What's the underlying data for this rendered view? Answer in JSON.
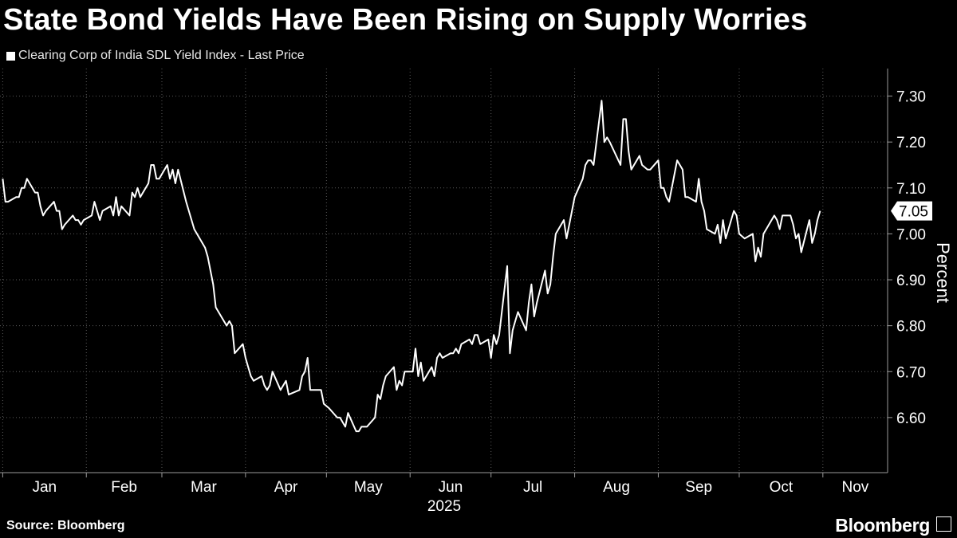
{
  "header": {
    "title": "State Bond Yields Have Been Rising on Supply Worries",
    "legend_label": "Clearing Corp of India SDL Yield Index - Last Price"
  },
  "footer": {
    "source": "Source: Bloomberg",
    "brand": "Bloomberg"
  },
  "chart_data": {
    "type": "line",
    "title": "State Bond Yields Have Been Rising on Supply Worries",
    "ylabel": "Percent",
    "xlabel": "2025",
    "ylim": [
      6.48,
      7.36
    ],
    "yticks": [
      "6.60",
      "6.70",
      "6.80",
      "6.90",
      "7.00",
      "7.10",
      "7.20",
      "7.30"
    ],
    "xticks": [
      "Jan",
      "Feb",
      "Mar",
      "Apr",
      "May",
      "Jun",
      "Jul",
      "Aug",
      "Sep",
      "Oct",
      "Nov"
    ],
    "year_label": "2025",
    "grid": true,
    "legend": "top-left",
    "last_value_label": "7.05",
    "series": [
      {
        "name": "Clearing Corp of India SDL Yield Index - Last Price",
        "color": "#ffffff",
        "points": [
          [
            "2025-01-01",
            7.12
          ],
          [
            "2025-01-02",
            7.07
          ],
          [
            "2025-01-03",
            7.07
          ],
          [
            "2025-01-06",
            7.08
          ],
          [
            "2025-01-07",
            7.08
          ],
          [
            "2025-01-08",
            7.1
          ],
          [
            "2025-01-09",
            7.1
          ],
          [
            "2025-01-10",
            7.12
          ],
          [
            "2025-01-13",
            7.09
          ],
          [
            "2025-01-14",
            7.09
          ],
          [
            "2025-01-15",
            7.06
          ],
          [
            "2025-01-16",
            7.04
          ],
          [
            "2025-01-17",
            7.05
          ],
          [
            "2025-01-20",
            7.07
          ],
          [
            "2025-01-21",
            7.05
          ],
          [
            "2025-01-22",
            7.05
          ],
          [
            "2025-01-23",
            7.01
          ],
          [
            "2025-01-24",
            7.02
          ],
          [
            "2025-01-27",
            7.04
          ],
          [
            "2025-01-28",
            7.03
          ],
          [
            "2025-01-29",
            7.03
          ],
          [
            "2025-01-30",
            7.02
          ],
          [
            "2025-01-31",
            7.03
          ],
          [
            "2025-02-03",
            7.04
          ],
          [
            "2025-02-04",
            7.07
          ],
          [
            "2025-02-05",
            7.05
          ],
          [
            "2025-02-06",
            7.03
          ],
          [
            "2025-02-07",
            7.05
          ],
          [
            "2025-02-10",
            7.06
          ],
          [
            "2025-02-11",
            7.04
          ],
          [
            "2025-02-12",
            7.08
          ],
          [
            "2025-02-13",
            7.04
          ],
          [
            "2025-02-14",
            7.06
          ],
          [
            "2025-02-17",
            7.04
          ],
          [
            "2025-02-18",
            7.09
          ],
          [
            "2025-02-19",
            7.08
          ],
          [
            "2025-02-20",
            7.1
          ],
          [
            "2025-02-21",
            7.08
          ],
          [
            "2025-02-24",
            7.11
          ],
          [
            "2025-02-25",
            7.15
          ],
          [
            "2025-02-26",
            7.15
          ],
          [
            "2025-02-27",
            7.12
          ],
          [
            "2025-02-28",
            7.12
          ],
          [
            "2025-03-03",
            7.15
          ],
          [
            "2025-03-04",
            7.12
          ],
          [
            "2025-03-05",
            7.14
          ],
          [
            "2025-03-06",
            7.11
          ],
          [
            "2025-03-07",
            7.14
          ],
          [
            "2025-03-10",
            7.07
          ],
          [
            "2025-03-11",
            7.05
          ],
          [
            "2025-03-12",
            7.03
          ],
          [
            "2025-03-13",
            7.01
          ],
          [
            "2025-03-14",
            7.0
          ],
          [
            "2025-03-17",
            6.97
          ],
          [
            "2025-03-18",
            6.95
          ],
          [
            "2025-03-19",
            6.92
          ],
          [
            "2025-03-20",
            6.89
          ],
          [
            "2025-03-21",
            6.84
          ],
          [
            "2025-03-24",
            6.81
          ],
          [
            "2025-03-25",
            6.8
          ],
          [
            "2025-03-26",
            6.81
          ],
          [
            "2025-03-27",
            6.8
          ],
          [
            "2025-03-28",
            6.74
          ],
          [
            "2025-03-31",
            6.76
          ],
          [
            "2025-04-01",
            6.73
          ],
          [
            "2025-04-02",
            6.71
          ],
          [
            "2025-04-03",
            6.69
          ],
          [
            "2025-04-04",
            6.68
          ],
          [
            "2025-04-07",
            6.69
          ],
          [
            "2025-04-08",
            6.67
          ],
          [
            "2025-04-09",
            6.66
          ],
          [
            "2025-04-10",
            6.67
          ],
          [
            "2025-04-11",
            6.7
          ],
          [
            "2025-04-14",
            6.66
          ],
          [
            "2025-04-15",
            6.67
          ],
          [
            "2025-04-16",
            6.68
          ],
          [
            "2025-04-17",
            6.65
          ],
          [
            "2025-04-21",
            6.66
          ],
          [
            "2025-04-22",
            6.69
          ],
          [
            "2025-04-23",
            6.7
          ],
          [
            "2025-04-24",
            6.73
          ],
          [
            "2025-04-25",
            6.66
          ],
          [
            "2025-04-28",
            6.66
          ],
          [
            "2025-04-29",
            6.66
          ],
          [
            "2025-04-30",
            6.63
          ],
          [
            "2025-05-02",
            6.62
          ],
          [
            "2025-05-05",
            6.6
          ],
          [
            "2025-05-06",
            6.6
          ],
          [
            "2025-05-07",
            6.59
          ],
          [
            "2025-05-08",
            6.58
          ],
          [
            "2025-05-09",
            6.61
          ],
          [
            "2025-05-12",
            6.57
          ],
          [
            "2025-05-13",
            6.57
          ],
          [
            "2025-05-14",
            6.58
          ],
          [
            "2025-05-15",
            6.58
          ],
          [
            "2025-05-16",
            6.58
          ],
          [
            "2025-05-19",
            6.6
          ],
          [
            "2025-05-20",
            6.65
          ],
          [
            "2025-05-21",
            6.64
          ],
          [
            "2025-05-22",
            6.67
          ],
          [
            "2025-05-23",
            6.69
          ],
          [
            "2025-05-26",
            6.71
          ],
          [
            "2025-05-27",
            6.66
          ],
          [
            "2025-05-28",
            6.68
          ],
          [
            "2025-05-29",
            6.67
          ],
          [
            "2025-05-30",
            6.7
          ],
          [
            "2025-06-02",
            6.7
          ],
          [
            "2025-06-03",
            6.75
          ],
          [
            "2025-06-04",
            6.69
          ],
          [
            "2025-06-05",
            6.72
          ],
          [
            "2025-06-06",
            6.68
          ],
          [
            "2025-06-09",
            6.71
          ],
          [
            "2025-06-10",
            6.69
          ],
          [
            "2025-06-11",
            6.73
          ],
          [
            "2025-06-12",
            6.74
          ],
          [
            "2025-06-13",
            6.73
          ],
          [
            "2025-06-16",
            6.74
          ],
          [
            "2025-06-17",
            6.74
          ],
          [
            "2025-06-18",
            6.75
          ],
          [
            "2025-06-19",
            6.74
          ],
          [
            "2025-06-20",
            6.76
          ],
          [
            "2025-06-23",
            6.77
          ],
          [
            "2025-06-24",
            6.76
          ],
          [
            "2025-06-25",
            6.78
          ],
          [
            "2025-06-26",
            6.78
          ],
          [
            "2025-06-27",
            6.76
          ],
          [
            "2025-06-30",
            6.77
          ],
          [
            "2025-07-01",
            6.73
          ],
          [
            "2025-07-02",
            6.78
          ],
          [
            "2025-07-03",
            6.76
          ],
          [
            "2025-07-04",
            6.78
          ],
          [
            "2025-07-07",
            6.93
          ],
          [
            "2025-07-08",
            6.74
          ],
          [
            "2025-07-09",
            6.79
          ],
          [
            "2025-07-10",
            6.81
          ],
          [
            "2025-07-11",
            6.83
          ],
          [
            "2025-07-14",
            6.79
          ],
          [
            "2025-07-15",
            6.85
          ],
          [
            "2025-07-16",
            6.89
          ],
          [
            "2025-07-17",
            6.82
          ],
          [
            "2025-07-18",
            6.85
          ],
          [
            "2025-07-21",
            6.92
          ],
          [
            "2025-07-22",
            6.87
          ],
          [
            "2025-07-23",
            6.89
          ],
          [
            "2025-07-24",
            6.95
          ],
          [
            "2025-07-25",
            7.0
          ],
          [
            "2025-07-28",
            7.03
          ],
          [
            "2025-07-29",
            6.99
          ],
          [
            "2025-07-30",
            7.02
          ],
          [
            "2025-07-31",
            7.05
          ],
          [
            "2025-08-01",
            7.08
          ],
          [
            "2025-08-04",
            7.12
          ],
          [
            "2025-08-05",
            7.15
          ],
          [
            "2025-08-06",
            7.16
          ],
          [
            "2025-08-07",
            7.16
          ],
          [
            "2025-08-08",
            7.15
          ],
          [
            "2025-08-11",
            7.29
          ],
          [
            "2025-08-12",
            7.2
          ],
          [
            "2025-08-13",
            7.21
          ],
          [
            "2025-08-14",
            7.2
          ],
          [
            "2025-08-18",
            7.15
          ],
          [
            "2025-08-19",
            7.25
          ],
          [
            "2025-08-20",
            7.25
          ],
          [
            "2025-08-21",
            7.18
          ],
          [
            "2025-08-22",
            7.14
          ],
          [
            "2025-08-25",
            7.17
          ],
          [
            "2025-08-26",
            7.15
          ],
          [
            "2025-08-28",
            7.14
          ],
          [
            "2025-08-29",
            7.14
          ],
          [
            "2025-09-01",
            7.16
          ],
          [
            "2025-09-02",
            7.1
          ],
          [
            "2025-09-03",
            7.1
          ],
          [
            "2025-09-04",
            7.08
          ],
          [
            "2025-09-05",
            7.07
          ],
          [
            "2025-09-08",
            7.16
          ],
          [
            "2025-09-09",
            7.15
          ],
          [
            "2025-09-10",
            7.14
          ],
          [
            "2025-09-11",
            7.08
          ],
          [
            "2025-09-12",
            7.08
          ],
          [
            "2025-09-15",
            7.07
          ],
          [
            "2025-09-16",
            7.12
          ],
          [
            "2025-09-17",
            7.07
          ],
          [
            "2025-09-18",
            7.05
          ],
          [
            "2025-09-19",
            7.01
          ],
          [
            "2025-09-22",
            7.0
          ],
          [
            "2025-09-23",
            7.02
          ],
          [
            "2025-09-24",
            6.98
          ],
          [
            "2025-09-25",
            7.03
          ],
          [
            "2025-09-26",
            6.99
          ],
          [
            "2025-09-29",
            7.05
          ],
          [
            "2025-09-30",
            7.04
          ],
          [
            "2025-10-01",
            7.0
          ],
          [
            "2025-10-03",
            6.99
          ],
          [
            "2025-10-06",
            7.0
          ],
          [
            "2025-10-07",
            6.94
          ],
          [
            "2025-10-08",
            6.97
          ],
          [
            "2025-10-09",
            6.95
          ],
          [
            "2025-10-10",
            7.0
          ],
          [
            "2025-10-13",
            7.03
          ],
          [
            "2025-10-14",
            7.04
          ],
          [
            "2025-10-15",
            7.03
          ],
          [
            "2025-10-16",
            7.01
          ],
          [
            "2025-10-17",
            7.04
          ],
          [
            "2025-10-20",
            7.04
          ],
          [
            "2025-10-21",
            7.02
          ],
          [
            "2025-10-22",
            6.99
          ],
          [
            "2025-10-23",
            7.0
          ],
          [
            "2025-10-24",
            6.96
          ],
          [
            "2025-10-27",
            7.03
          ],
          [
            "2025-10-28",
            6.98
          ],
          [
            "2025-10-29",
            7.0
          ],
          [
            "2025-10-30",
            7.03
          ],
          [
            "2025-10-31",
            7.05
          ]
        ]
      }
    ]
  }
}
